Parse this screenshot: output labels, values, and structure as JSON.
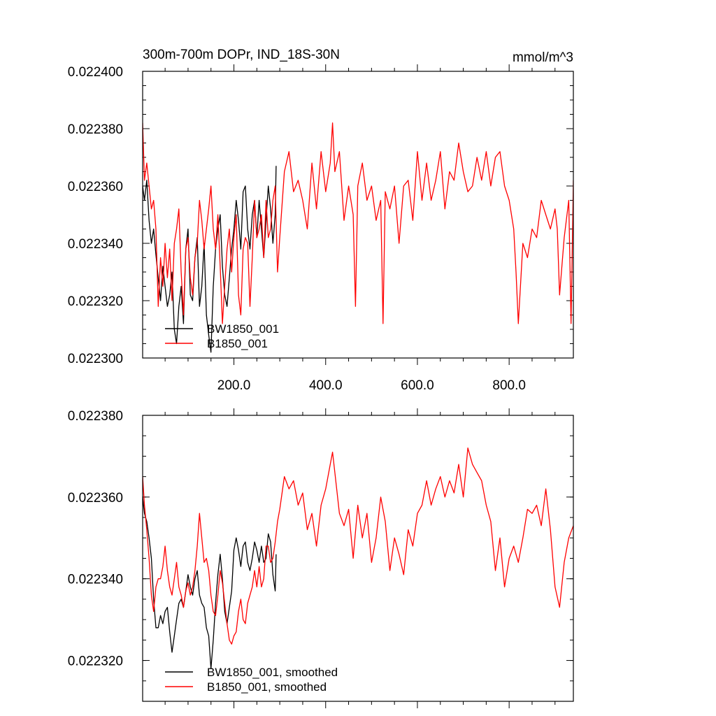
{
  "chart_data": [
    {
      "type": "line",
      "title_left": "300m-700m DOPr, IND_18S-30N",
      "title_right": "mmol/m^3",
      "xlabel": "",
      "ylabel": "",
      "xlim": [
        1,
        940
      ],
      "ylim": [
        0.0223,
        0.0224
      ],
      "yticks": [
        "0.022300",
        "0.022320",
        "0.022340",
        "0.022360",
        "0.022380",
        "0.022400"
      ],
      "xticks": [
        "200.0",
        "400.0",
        "600.0",
        "800.0"
      ],
      "legend_position": "bottom-left",
      "series": [
        {
          "name": "BW1850_001",
          "color": "#000000",
          "x": [
            1,
            5,
            10,
            15,
            20,
            25,
            30,
            35,
            40,
            45,
            50,
            55,
            60,
            65,
            70,
            75,
            80,
            85,
            90,
            95,
            100,
            105,
            110,
            115,
            120,
            125,
            130,
            135,
            140,
            145,
            150,
            155,
            160,
            165,
            170,
            175,
            180,
            185,
            190,
            195,
            200,
            205,
            210,
            215,
            220,
            225,
            230,
            235,
            240,
            245,
            250,
            255,
            260,
            265,
            270,
            275,
            280,
            285,
            290,
            292
          ],
          "values": [
            0.02236,
            0.022355,
            0.022362,
            0.022348,
            0.02234,
            0.022345,
            0.022336,
            0.022328,
            0.02232,
            0.022332,
            0.022325,
            0.022318,
            0.022322,
            0.02233,
            0.02231,
            0.022305,
            0.022318,
            0.022325,
            0.022312,
            0.022338,
            0.022345,
            0.022322,
            0.02232,
            0.022335,
            0.022342,
            0.022318,
            0.022325,
            0.02234,
            0.022315,
            0.022308,
            0.022302,
            0.022325,
            0.022338,
            0.022345,
            0.02235,
            0.022332,
            0.022322,
            0.022318,
            0.022328,
            0.022338,
            0.022345,
            0.022355,
            0.022348,
            0.022338,
            0.022358,
            0.02236,
            0.022345,
            0.022338,
            0.02235,
            0.022355,
            0.022342,
            0.022355,
            0.022345,
            0.022335,
            0.022348,
            0.02236,
            0.022352,
            0.02234,
            0.02235,
            0.022367
          ]
        },
        {
          "name": "B1850_001",
          "color": "#ff0000",
          "x": [
            1,
            5,
            10,
            15,
            20,
            25,
            30,
            35,
            40,
            45,
            50,
            55,
            60,
            65,
            70,
            75,
            80,
            85,
            90,
            95,
            100,
            105,
            110,
            115,
            120,
            125,
            130,
            135,
            140,
            145,
            150,
            155,
            160,
            165,
            170,
            175,
            180,
            185,
            190,
            195,
            200,
            205,
            210,
            215,
            220,
            225,
            230,
            235,
            240,
            245,
            250,
            255,
            260,
            265,
            270,
            275,
            280,
            285,
            290,
            295,
            300,
            310,
            320,
            330,
            340,
            350,
            360,
            370,
            380,
            390,
            400,
            410,
            415,
            420,
            430,
            440,
            450,
            460,
            465,
            470,
            480,
            490,
            500,
            510,
            520,
            525,
            530,
            540,
            550,
            560,
            570,
            580,
            590,
            600,
            610,
            620,
            630,
            640,
            650,
            660,
            670,
            680,
            690,
            700,
            710,
            720,
            730,
            740,
            750,
            760,
            770,
            780,
            790,
            800,
            810,
            815,
            820,
            830,
            840,
            850,
            860,
            870,
            880,
            890,
            900,
            905,
            910,
            920,
            930,
            935,
            940
          ],
          "values": [
            0.022382,
            0.022362,
            0.022368,
            0.02236,
            0.022352,
            0.022355,
            0.022345,
            0.022318,
            0.022335,
            0.022325,
            0.02234,
            0.022328,
            0.022338,
            0.02232,
            0.02234,
            0.022345,
            0.022352,
            0.02233,
            0.022315,
            0.022338,
            0.022342,
            0.022328,
            0.022322,
            0.022335,
            0.02234,
            0.022355,
            0.022348,
            0.022338,
            0.022345,
            0.022352,
            0.02236,
            0.022345,
            0.022338,
            0.02235,
            0.022332,
            0.022312,
            0.022325,
            0.022338,
            0.022345,
            0.02233,
            0.022342,
            0.02235,
            0.022322,
            0.022315,
            0.022338,
            0.022342,
            0.02234,
            0.022318,
            0.022335,
            0.022355,
            0.022342,
            0.022345,
            0.02235,
            0.022335,
            0.022355,
            0.022342,
            0.022345,
            0.022355,
            0.02236,
            0.02233,
            0.022342,
            0.022365,
            0.022372,
            0.022358,
            0.022362,
            0.022355,
            0.022345,
            0.022368,
            0.022352,
            0.022372,
            0.022358,
            0.022368,
            0.022382,
            0.022365,
            0.022372,
            0.022348,
            0.02236,
            0.02235,
            0.022318,
            0.02236,
            0.022368,
            0.022355,
            0.02236,
            0.022348,
            0.022355,
            0.022312,
            0.022358,
            0.022352,
            0.02236,
            0.02234,
            0.02236,
            0.022362,
            0.022348,
            0.022372,
            0.022355,
            0.022368,
            0.022355,
            0.022362,
            0.022372,
            0.022352,
            0.022365,
            0.022362,
            0.022375,
            0.022365,
            0.022358,
            0.02236,
            0.02237,
            0.022362,
            0.022372,
            0.02236,
            0.02237,
            0.022372,
            0.02236,
            0.022355,
            0.022345,
            0.02233,
            0.022312,
            0.02234,
            0.022335,
            0.022345,
            0.022342,
            0.022355,
            0.02235,
            0.022345,
            0.022352,
            0.022345,
            0.022322,
            0.022342,
            0.022355,
            0.022312,
            0.022362
          ]
        }
      ],
      "legend": [
        "BW1850_001",
        "B1850_001"
      ]
    },
    {
      "type": "line",
      "title_left": "",
      "title_right": "",
      "xlabel": "",
      "ylabel": "",
      "xlim": [
        1,
        940
      ],
      "ylim": [
        0.02231,
        0.02238
      ],
      "yticks": [
        "0.022320",
        "0.022340",
        "0.022360",
        "0.022380"
      ],
      "legend_position": "bottom-left",
      "series": [
        {
          "name": "BW1850_001, smoothed",
          "color": "#000000",
          "x": [
            1,
            5,
            10,
            15,
            20,
            25,
            30,
            35,
            40,
            45,
            50,
            55,
            60,
            65,
            70,
            75,
            80,
            85,
            90,
            95,
            100,
            105,
            110,
            115,
            120,
            125,
            130,
            135,
            140,
            145,
            150,
            155,
            160,
            165,
            170,
            175,
            180,
            185,
            190,
            195,
            200,
            205,
            210,
            215,
            220,
            225,
            230,
            235,
            240,
            245,
            250,
            255,
            260,
            265,
            270,
            275,
            280,
            285,
            290,
            292
          ],
          "values": [
            0.02236,
            0.022356,
            0.022354,
            0.02235,
            0.022345,
            0.022335,
            0.022328,
            0.022328,
            0.022331,
            0.022329,
            0.022332,
            0.022333,
            0.022327,
            0.022322,
            0.022326,
            0.02233,
            0.022334,
            0.022335,
            0.022333,
            0.022337,
            0.022341,
            0.022338,
            0.022336,
            0.02234,
            0.022342,
            0.022336,
            0.022334,
            0.022333,
            0.022328,
            0.022326,
            0.022318,
            0.022325,
            0.022334,
            0.022341,
            0.022346,
            0.02234,
            0.022332,
            0.022329,
            0.022333,
            0.022337,
            0.022347,
            0.02235,
            0.022347,
            0.022343,
            0.022348,
            0.022349,
            0.022344,
            0.022342,
            0.022345,
            0.022349,
            0.022347,
            0.022344,
            0.022348,
            0.022344,
            0.022345,
            0.022351,
            0.022349,
            0.022341,
            0.022337,
            0.022346
          ]
        },
        {
          "name": "B1850_001, smoothed",
          "color": "#ff0000",
          "x": [
            1,
            5,
            10,
            15,
            20,
            25,
            30,
            35,
            40,
            45,
            50,
            55,
            60,
            65,
            70,
            75,
            80,
            85,
            90,
            95,
            100,
            105,
            110,
            115,
            120,
            125,
            130,
            135,
            140,
            145,
            150,
            155,
            160,
            165,
            170,
            175,
            180,
            185,
            190,
            195,
            200,
            205,
            210,
            215,
            220,
            225,
            230,
            235,
            240,
            245,
            250,
            255,
            260,
            265,
            270,
            275,
            280,
            285,
            290,
            295,
            300,
            310,
            320,
            330,
            340,
            350,
            360,
            370,
            380,
            390,
            400,
            410,
            415,
            420,
            430,
            440,
            450,
            460,
            470,
            480,
            490,
            500,
            510,
            520,
            530,
            540,
            550,
            560,
            570,
            580,
            590,
            600,
            610,
            620,
            630,
            640,
            650,
            660,
            670,
            680,
            690,
            700,
            710,
            720,
            730,
            740,
            750,
            760,
            770,
            780,
            790,
            800,
            810,
            820,
            830,
            840,
            850,
            860,
            870,
            880,
            890,
            900,
            910,
            920,
            930,
            940
          ],
          "values": [
            0.022365,
            0.022358,
            0.022352,
            0.022345,
            0.022336,
            0.022332,
            0.022338,
            0.02234,
            0.02234,
            0.022343,
            0.022348,
            0.022342,
            0.022338,
            0.022336,
            0.02234,
            0.022344,
            0.022338,
            0.022336,
            0.022333,
            0.022337,
            0.022339,
            0.022336,
            0.022338,
            0.022342,
            0.022348,
            0.022356,
            0.02235,
            0.022344,
            0.022345,
            0.022342,
            0.022336,
            0.022332,
            0.022331,
            0.022336,
            0.022342,
            0.022339,
            0.022334,
            0.022329,
            0.022325,
            0.022324,
            0.022326,
            0.022327,
            0.022332,
            0.022335,
            0.02233,
            0.022329,
            0.022334,
            0.022336,
            0.022338,
            0.022342,
            0.022338,
            0.022343,
            0.022338,
            0.02234,
            0.022348,
            0.022348,
            0.022344,
            0.022345,
            0.022349,
            0.022354,
            0.022357,
            0.022365,
            0.022362,
            0.022364,
            0.022358,
            0.022361,
            0.022352,
            0.022356,
            0.022348,
            0.022358,
            0.022362,
            0.022368,
            0.022371,
            0.022366,
            0.022356,
            0.022353,
            0.022357,
            0.022345,
            0.022358,
            0.02235,
            0.022356,
            0.022344,
            0.02235,
            0.02236,
            0.022354,
            0.022342,
            0.02235,
            0.022346,
            0.022341,
            0.022352,
            0.022348,
            0.022356,
            0.022358,
            0.022364,
            0.022358,
            0.022362,
            0.022365,
            0.02236,
            0.022364,
            0.022361,
            0.022368,
            0.02236,
            0.022372,
            0.022368,
            0.022366,
            0.022364,
            0.022358,
            0.022354,
            0.022342,
            0.02235,
            0.022338,
            0.022345,
            0.022348,
            0.022344,
            0.02235,
            0.022357,
            0.022356,
            0.022358,
            0.022353,
            0.022362,
            0.022352,
            0.022338,
            0.022333,
            0.022344,
            0.02235,
            0.022353
          ]
        }
      ],
      "legend": [
        "BW1850_001, smoothed",
        "B1850_001, smoothed"
      ]
    }
  ]
}
